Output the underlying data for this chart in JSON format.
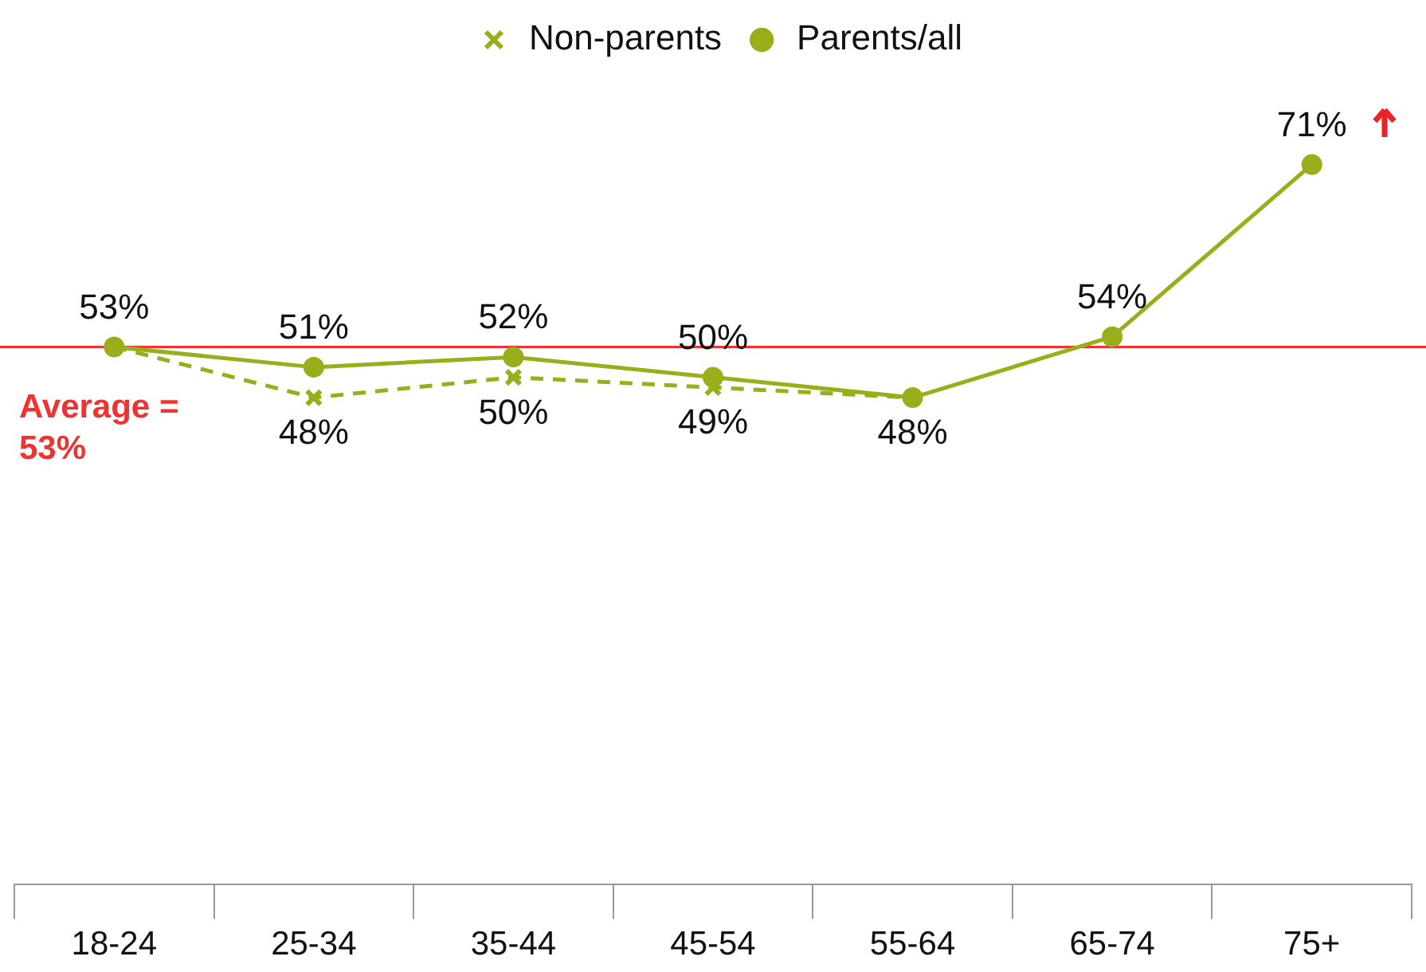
{
  "chart_data": {
    "type": "line",
    "categories": [
      "18-24",
      "25-34",
      "35-44",
      "45-54",
      "55-64",
      "65-74",
      "75+"
    ],
    "series": [
      {
        "name": "Non-parents",
        "color": "#9aad1b",
        "line_style": "dashed",
        "marker": "cross",
        "values": [
          53,
          48,
          50,
          49,
          48,
          null,
          null
        ],
        "value_labels": [
          null,
          "48%",
          "50%",
          "49%",
          "48%",
          null,
          null
        ]
      },
      {
        "name": "Parents/all",
        "color": "#9aad1b",
        "line_style": "solid",
        "marker": "circle",
        "values": [
          53,
          51,
          52,
          50,
          48,
          54,
          71
        ],
        "value_labels": [
          "53%",
          "51%",
          "52%",
          "50%",
          null,
          "54%",
          "71%"
        ]
      }
    ],
    "tick_labels": "x",
    "legend": "top",
    "ref_lines": [
      {
        "axis": "y",
        "value": 53,
        "label": "Average = 53%",
        "color": "#ee3333"
      }
    ]
  }
}
